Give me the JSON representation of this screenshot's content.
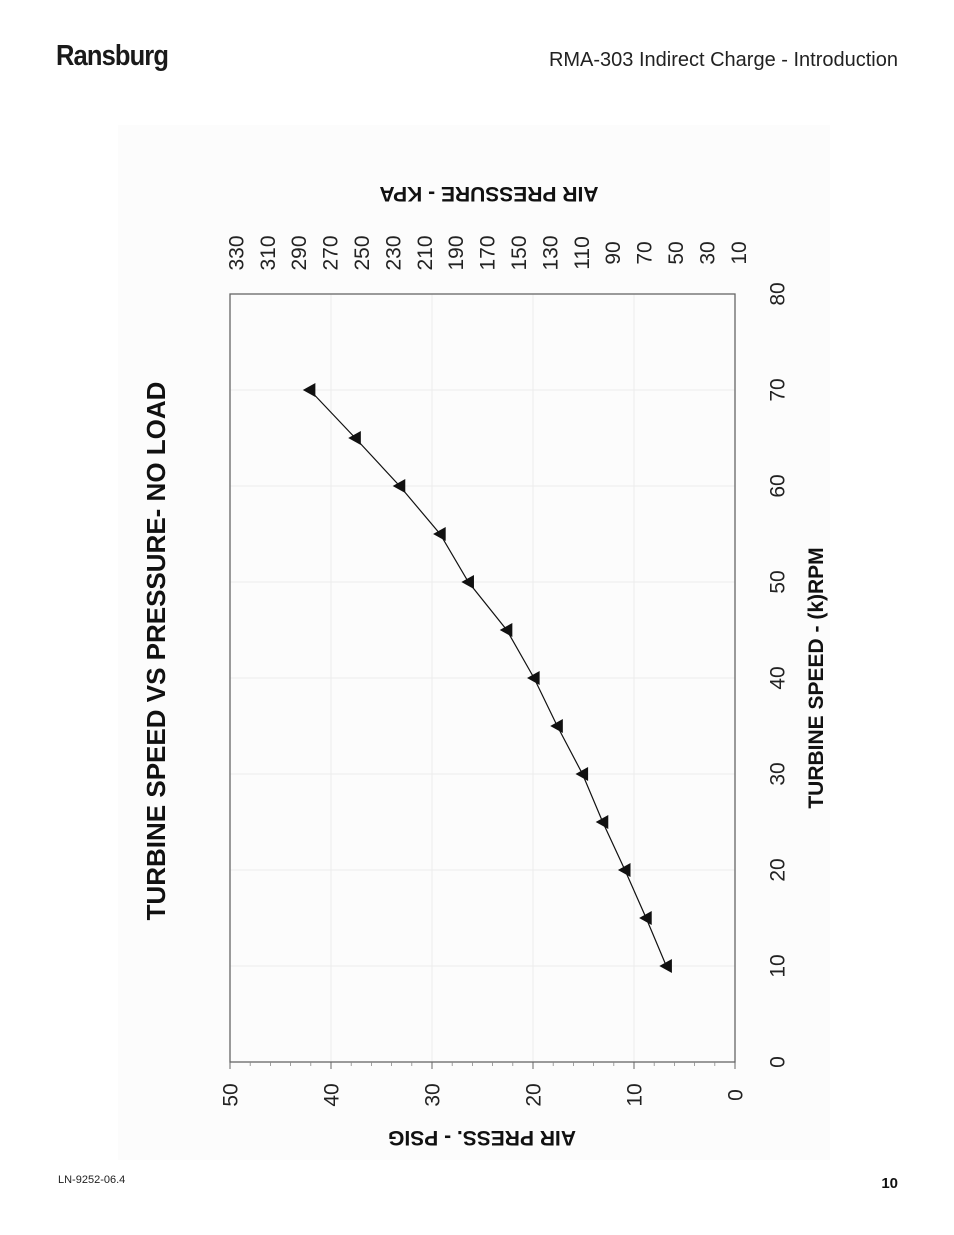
{
  "header": {
    "brand": "Ransburg",
    "doc_title": "RMA-303 Indirect Charge - Introduction"
  },
  "footer": {
    "doc_number": "LN-9252-06.4",
    "page_number": "10"
  },
  "chart_data": {
    "type": "line",
    "orientation": "rotated-90-clockwise",
    "title": "TURBINE SPEED VS PRESSURE- NO LOAD",
    "xlabel": "TURBINE SPEED - (k)RPM",
    "ylabel": "AIR PRESS. - PSIG",
    "y2label": "AIR PRESSURE - KPA",
    "xlim": [
      0,
      80
    ],
    "ylim": [
      0,
      50
    ],
    "xticks": [
      0,
      10,
      20,
      30,
      40,
      50,
      60,
      70,
      80
    ],
    "yticks": [
      50,
      40,
      30,
      20,
      10,
      0
    ],
    "y2ticks": [
      330,
      310,
      290,
      270,
      250,
      230,
      210,
      190,
      170,
      150,
      130,
      110,
      90,
      70,
      50,
      30,
      10
    ],
    "marker": "triangle",
    "grid": true,
    "series": [
      {
        "x": [
          10,
          15,
          20,
          25,
          30,
          35,
          40,
          45,
          50,
          55,
          60,
          65,
          70
        ],
        "y": [
          6.8,
          8.8,
          10.9,
          13.1,
          15.1,
          17.6,
          19.9,
          22.6,
          26.4,
          29.2,
          33.2,
          37.6,
          42.1
        ]
      }
    ]
  }
}
